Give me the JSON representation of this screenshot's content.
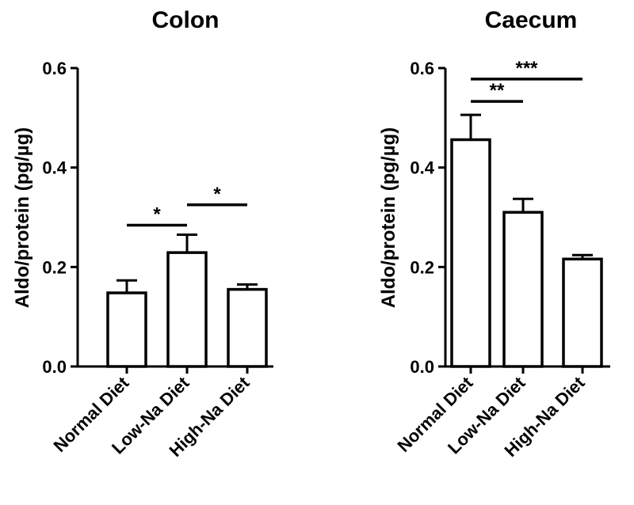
{
  "chart_data": [
    {
      "type": "bar",
      "title": "Colon",
      "ylabel": "Aldo/protein (pg/µg)",
      "categories": [
        "Normal Diet",
        "Low-Na Diet",
        "High-Na Diet"
      ],
      "values": [
        0.148,
        0.229,
        0.155
      ],
      "errors": [
        0.025,
        0.036,
        0.01
      ],
      "ylim": [
        0.0,
        0.6
      ],
      "yticks": [
        "0.0",
        "0.2",
        "0.4",
        "0.6"
      ],
      "significance": [
        {
          "from": 0,
          "to": 1,
          "label": "*",
          "y": 0.284
        },
        {
          "from": 1,
          "to": 2,
          "label": "*",
          "y": 0.325
        }
      ]
    },
    {
      "type": "bar",
      "title": "Caecum",
      "ylabel": "Aldo/protein (pg/µg)",
      "categories": [
        "Normal Diet",
        "Low-Na Diet",
        "High-Na Diet"
      ],
      "values": [
        0.456,
        0.31,
        0.216
      ],
      "errors": [
        0.05,
        0.027,
        0.008
      ],
      "ylim": [
        0.0,
        0.6
      ],
      "yticks": [
        "0.0",
        "0.2",
        "0.4",
        "0.6"
      ],
      "significance": [
        {
          "from": 0,
          "to": 1,
          "label": "**",
          "y": 0.533
        },
        {
          "from": 0,
          "to": 2,
          "label": "***",
          "y": 0.578
        }
      ]
    }
  ]
}
